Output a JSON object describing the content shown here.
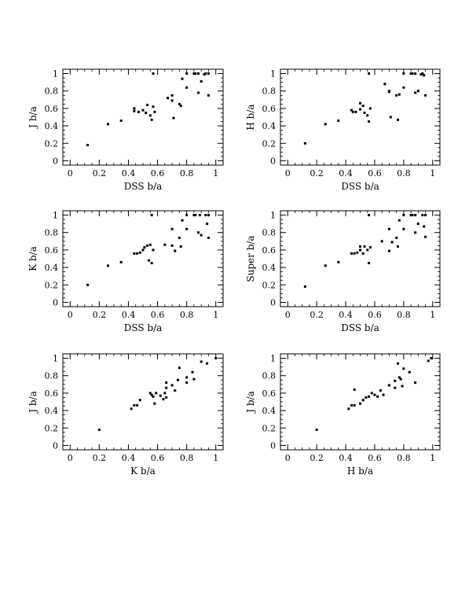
{
  "chart_data": [
    {
      "type": "scatter",
      "xlabel": "DSS b/a",
      "ylabel": "J b/a",
      "xlim": [
        -0.05,
        1.05
      ],
      "ylim": [
        -0.05,
        1.05
      ],
      "xticks": [
        0,
        0.2,
        0.4,
        0.6,
        0.8,
        1
      ],
      "yticks": [
        0,
        0.2,
        0.4,
        0.6,
        0.8,
        1
      ],
      "xtick_labels": [
        "0",
        "0.2",
        "0.4",
        "0.6",
        "0.8",
        "1"
      ],
      "ytick_labels": [
        "0",
        "0.2",
        "0.4",
        "0.6",
        "0.8",
        "1"
      ],
      "grid": false,
      "points": [
        [
          0.12,
          0.18
        ],
        [
          0.26,
          0.42
        ],
        [
          0.35,
          0.46
        ],
        [
          0.44,
          0.6
        ],
        [
          0.44,
          0.57
        ],
        [
          0.47,
          0.56
        ],
        [
          0.5,
          0.58
        ],
        [
          0.52,
          0.55
        ],
        [
          0.53,
          0.64
        ],
        [
          0.55,
          0.52
        ],
        [
          0.56,
          0.47
        ],
        [
          0.57,
          0.62
        ],
        [
          0.58,
          0.56
        ],
        [
          0.57,
          1.0
        ],
        [
          0.67,
          0.72
        ],
        [
          0.7,
          0.75
        ],
        [
          0.7,
          0.69
        ],
        [
          0.71,
          0.49
        ],
        [
          0.75,
          0.65
        ],
        [
          0.76,
          0.63
        ],
        [
          0.77,
          0.94
        ],
        [
          0.8,
          0.84
        ],
        [
          0.8,
          1.0
        ],
        [
          0.85,
          1.0
        ],
        [
          0.86,
          1.0
        ],
        [
          0.88,
          1.0
        ],
        [
          0.88,
          0.78
        ],
        [
          0.9,
          0.91
        ],
        [
          0.92,
          0.99
        ],
        [
          0.93,
          1.0
        ],
        [
          0.95,
          1.0
        ],
        [
          0.95,
          0.75
        ]
      ]
    },
    {
      "type": "scatter",
      "xlabel": "DSS b/a",
      "ylabel": "H b/a",
      "xlim": [
        -0.05,
        1.05
      ],
      "ylim": [
        -0.05,
        1.05
      ],
      "xticks": [
        0,
        0.2,
        0.4,
        0.6,
        0.8,
        1
      ],
      "yticks": [
        0,
        0.2,
        0.4,
        0.6,
        0.8,
        1
      ],
      "xtick_labels": [
        "0",
        "0.2",
        "0.4",
        "0.6",
        "0.8",
        "1"
      ],
      "ytick_labels": [
        "0",
        "0.2",
        "0.4",
        "0.6",
        "0.8",
        "1"
      ],
      "grid": false,
      "points": [
        [
          0.12,
          0.2
        ],
        [
          0.26,
          0.42
        ],
        [
          0.35,
          0.46
        ],
        [
          0.44,
          0.58
        ],
        [
          0.45,
          0.56
        ],
        [
          0.47,
          0.56
        ],
        [
          0.5,
          0.66
        ],
        [
          0.5,
          0.59
        ],
        [
          0.52,
          0.63
        ],
        [
          0.53,
          0.55
        ],
        [
          0.55,
          0.52
        ],
        [
          0.56,
          0.45
        ],
        [
          0.57,
          0.6
        ],
        [
          0.56,
          1.0
        ],
        [
          0.67,
          0.88
        ],
        [
          0.7,
          0.8
        ],
        [
          0.7,
          0.79
        ],
        [
          0.71,
          0.5
        ],
        [
          0.75,
          0.75
        ],
        [
          0.76,
          0.47
        ],
        [
          0.77,
          0.76
        ],
        [
          0.8,
          0.84
        ],
        [
          0.8,
          1.0
        ],
        [
          0.85,
          1.0
        ],
        [
          0.86,
          1.0
        ],
        [
          0.88,
          1.0
        ],
        [
          0.88,
          0.78
        ],
        [
          0.9,
          0.8
        ],
        [
          0.92,
          0.99
        ],
        [
          0.93,
          1.0
        ],
        [
          0.94,
          0.98
        ],
        [
          0.95,
          0.75
        ]
      ]
    },
    {
      "type": "scatter",
      "xlabel": "DSS b/a",
      "ylabel": "K b/a",
      "xlim": [
        -0.05,
        1.05
      ],
      "ylim": [
        -0.05,
        1.05
      ],
      "xticks": [
        0,
        0.2,
        0.4,
        0.6,
        0.8,
        1
      ],
      "yticks": [
        0,
        0.2,
        0.4,
        0.6,
        0.8,
        1
      ],
      "xtick_labels": [
        "0",
        "0.2",
        "0.4",
        "0.6",
        "0.8",
        "1"
      ],
      "ytick_labels": [
        "0",
        "0.2",
        "0.4",
        "0.6",
        "0.8",
        "1"
      ],
      "grid": false,
      "points": [
        [
          0.12,
          0.2
        ],
        [
          0.26,
          0.42
        ],
        [
          0.35,
          0.46
        ],
        [
          0.44,
          0.56
        ],
        [
          0.46,
          0.56
        ],
        [
          0.48,
          0.57
        ],
        [
          0.5,
          0.6
        ],
        [
          0.51,
          0.63
        ],
        [
          0.53,
          0.65
        ],
        [
          0.55,
          0.66
        ],
        [
          0.54,
          0.48
        ],
        [
          0.56,
          0.45
        ],
        [
          0.57,
          0.6
        ],
        [
          0.56,
          1.0
        ],
        [
          0.65,
          0.66
        ],
        [
          0.7,
          0.84
        ],
        [
          0.7,
          0.65
        ],
        [
          0.72,
          0.59
        ],
        [
          0.75,
          0.74
        ],
        [
          0.76,
          0.64
        ],
        [
          0.77,
          0.94
        ],
        [
          0.8,
          0.84
        ],
        [
          0.8,
          1.0
        ],
        [
          0.85,
          1.0
        ],
        [
          0.86,
          1.0
        ],
        [
          0.88,
          0.8
        ],
        [
          0.89,
          1.0
        ],
        [
          0.9,
          0.77
        ],
        [
          0.93,
          1.0
        ],
        [
          0.94,
          0.9
        ],
        [
          0.95,
          1.0
        ],
        [
          0.95,
          0.74
        ]
      ]
    },
    {
      "type": "scatter",
      "xlabel": "DSS b/a",
      "ylabel": "Super b/a",
      "xlim": [
        -0.05,
        1.05
      ],
      "ylim": [
        -0.05,
        1.05
      ],
      "xticks": [
        0,
        0.2,
        0.4,
        0.6,
        0.8,
        1
      ],
      "yticks": [
        0,
        0.2,
        0.4,
        0.6,
        0.8,
        1
      ],
      "xtick_labels": [
        "0",
        "0.2",
        "0.4",
        "0.6",
        "0.8",
        "1"
      ],
      "ytick_labels": [
        "0",
        "0.2",
        "0.4",
        "0.6",
        "0.8",
        "1"
      ],
      "grid": false,
      "points": [
        [
          0.12,
          0.18
        ],
        [
          0.26,
          0.42
        ],
        [
          0.35,
          0.46
        ],
        [
          0.44,
          0.56
        ],
        [
          0.46,
          0.56
        ],
        [
          0.48,
          0.57
        ],
        [
          0.5,
          0.6
        ],
        [
          0.5,
          0.64
        ],
        [
          0.52,
          0.56
        ],
        [
          0.53,
          0.64
        ],
        [
          0.55,
          0.6
        ],
        [
          0.56,
          0.45
        ],
        [
          0.57,
          0.63
        ],
        [
          0.56,
          1.0
        ],
        [
          0.65,
          0.7
        ],
        [
          0.7,
          0.84
        ],
        [
          0.7,
          0.59
        ],
        [
          0.72,
          0.69
        ],
        [
          0.75,
          0.74
        ],
        [
          0.76,
          0.64
        ],
        [
          0.77,
          0.94
        ],
        [
          0.8,
          1.0
        ],
        [
          0.8,
          0.84
        ],
        [
          0.85,
          1.0
        ],
        [
          0.86,
          1.0
        ],
        [
          0.88,
          1.0
        ],
        [
          0.88,
          0.8
        ],
        [
          0.9,
          0.9
        ],
        [
          0.93,
          1.0
        ],
        [
          0.94,
          0.87
        ],
        [
          0.95,
          1.0
        ],
        [
          0.95,
          0.75
        ]
      ]
    },
    {
      "type": "scatter",
      "xlabel": "K b/a",
      "ylabel": "J b/a",
      "xlim": [
        -0.05,
        1.05
      ],
      "ylim": [
        -0.05,
        1.05
      ],
      "xticks": [
        0,
        0.2,
        0.4,
        0.6,
        0.8,
        1
      ],
      "yticks": [
        0,
        0.2,
        0.4,
        0.6,
        0.8,
        1
      ],
      "xtick_labels": [
        "0",
        "0.2",
        "0.4",
        "0.6",
        "0.8",
        "1"
      ],
      "ytick_labels": [
        "0",
        "0.2",
        "0.4",
        "0.6",
        "0.8",
        "1"
      ],
      "grid": false,
      "points": [
        [
          0.2,
          0.18
        ],
        [
          0.42,
          0.42
        ],
        [
          0.44,
          0.46
        ],
        [
          0.46,
          0.46
        ],
        [
          0.48,
          0.52
        ],
        [
          0.55,
          0.6
        ],
        [
          0.56,
          0.58
        ],
        [
          0.57,
          0.56
        ],
        [
          0.58,
          0.48
        ],
        [
          0.59,
          0.6
        ],
        [
          0.62,
          0.57
        ],
        [
          0.64,
          0.53
        ],
        [
          0.65,
          0.6
        ],
        [
          0.66,
          0.66
        ],
        [
          0.66,
          0.72
        ],
        [
          0.66,
          0.55
        ],
        [
          0.7,
          0.69
        ],
        [
          0.72,
          0.63
        ],
        [
          0.74,
          0.75
        ],
        [
          0.75,
          0.89
        ],
        [
          0.8,
          0.72
        ],
        [
          0.8,
          0.78
        ],
        [
          0.84,
          0.84
        ],
        [
          0.85,
          0.76
        ],
        [
          0.9,
          0.96
        ],
        [
          0.94,
          0.94
        ],
        [
          1.0,
          1.0
        ]
      ]
    },
    {
      "type": "scatter",
      "xlabel": "H b/a",
      "ylabel": "J b/a",
      "xlim": [
        -0.05,
        1.05
      ],
      "ylim": [
        -0.05,
        1.05
      ],
      "xticks": [
        0,
        0.2,
        0.4,
        0.6,
        0.8,
        1
      ],
      "yticks": [
        0,
        0.2,
        0.4,
        0.6,
        0.8,
        1
      ],
      "xtick_labels": [
        "0",
        "0.2",
        "0.4",
        "0.6",
        "0.8",
        "1"
      ],
      "ytick_labels": [
        "0",
        "0.2",
        "0.4",
        "0.6",
        "0.8",
        "1"
      ],
      "grid": false,
      "points": [
        [
          0.2,
          0.18
        ],
        [
          0.42,
          0.42
        ],
        [
          0.44,
          0.46
        ],
        [
          0.46,
          0.46
        ],
        [
          0.46,
          0.64
        ],
        [
          0.5,
          0.48
        ],
        [
          0.52,
          0.52
        ],
        [
          0.54,
          0.55
        ],
        [
          0.56,
          0.56
        ],
        [
          0.58,
          0.6
        ],
        [
          0.6,
          0.58
        ],
        [
          0.62,
          0.56
        ],
        [
          0.64,
          0.63
        ],
        [
          0.66,
          0.58
        ],
        [
          0.7,
          0.69
        ],
        [
          0.74,
          0.66
        ],
        [
          0.74,
          0.74
        ],
        [
          0.76,
          0.94
        ],
        [
          0.77,
          0.78
        ],
        [
          0.78,
          0.76
        ],
        [
          0.79,
          0.68
        ],
        [
          0.8,
          0.88
        ],
        [
          0.84,
          0.84
        ],
        [
          0.88,
          0.72
        ],
        [
          0.97,
          0.97
        ],
        [
          0.99,
          1.0
        ]
      ]
    }
  ]
}
